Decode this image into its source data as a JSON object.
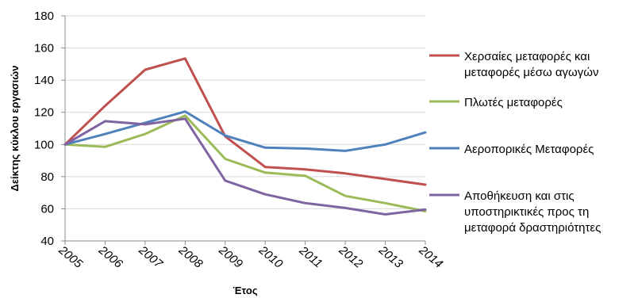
{
  "chart_data": {
    "type": "line",
    "title": "",
    "xlabel": "Έτος",
    "ylabel": "Δείκτης κύκλου εργασιών",
    "x": [
      "2005",
      "2006",
      "2007",
      "2008",
      "2009",
      "2010",
      "2011",
      "2012",
      "2013",
      "2014"
    ],
    "ylim": [
      40,
      180
    ],
    "yticks": [
      40,
      60,
      80,
      100,
      120,
      140,
      160,
      180
    ],
    "grid": "horizontal",
    "legend_position": "right",
    "series": [
      {
        "name_lines": [
          "Χερσαίες μεταφορές και",
          "μεταφορές μέσω αγωγών"
        ],
        "color": "#c0504d",
        "values": [
          100,
          124,
          146.5,
          153.5,
          105,
          86,
          84.5,
          82,
          78.5,
          75
        ]
      },
      {
        "name_lines": [
          "Πλωτές μεταφορές"
        ],
        "color": "#9bbb59",
        "values": [
          100,
          98.5,
          106.5,
          118,
          91,
          82.5,
          80.5,
          68,
          63.5,
          58.5
        ]
      },
      {
        "name_lines": [
          "Αεροπορικές Μεταφορές"
        ],
        "color": "#4f81bd",
        "values": [
          100,
          106.5,
          113.5,
          120.5,
          105.5,
          98,
          97.5,
          96,
          100,
          107.5
        ]
      },
      {
        "name_lines": [
          "Αποθήκευση και στις",
          "υποστηρικτικές προς τη",
          "μεταφορά δραστηριότητες"
        ],
        "color": "#8064a2",
        "values": [
          100,
          114.5,
          112.5,
          116,
          77.5,
          69,
          63.5,
          60.5,
          56.5,
          59.5
        ]
      }
    ]
  }
}
